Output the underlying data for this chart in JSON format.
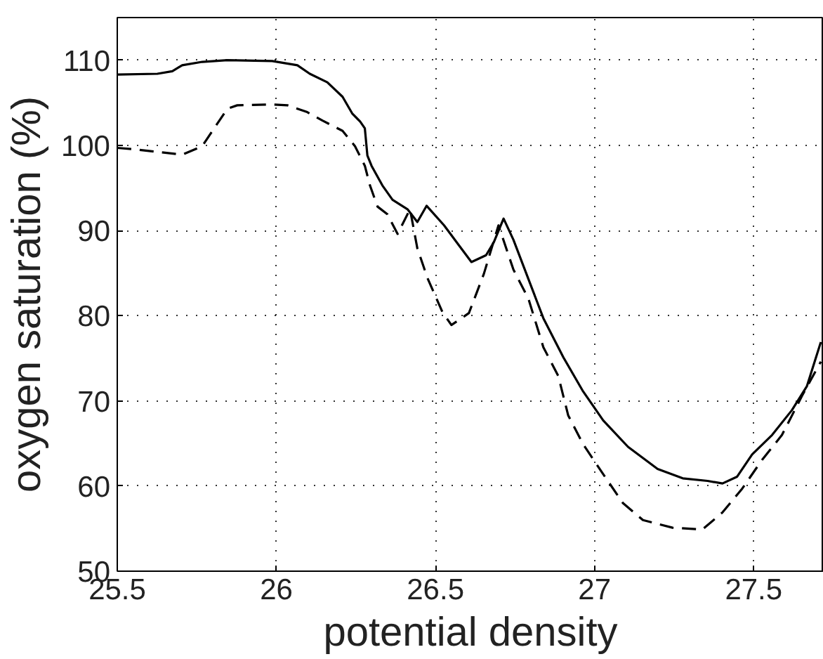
{
  "chart_data": {
    "type": "line",
    "xlabel": "potential density",
    "ylabel": "oxygen saturation (%)",
    "xlim": [
      25.5,
      27.72
    ],
    "ylim": [
      50,
      115
    ],
    "xticks": [
      25.5,
      26,
      26.5,
      27,
      27.5
    ],
    "yticks": [
      50,
      60,
      70,
      80,
      90,
      100,
      110
    ],
    "grid": true,
    "series": [
      {
        "color": "#000000",
        "line_style": "solid",
        "x": [
          25.5,
          25.626,
          25.673,
          25.704,
          25.767,
          25.846,
          25.987,
          26.066,
          26.105,
          26.16,
          26.208,
          26.239,
          26.263,
          26.278,
          26.286,
          26.299,
          26.333,
          26.365,
          26.412,
          26.443,
          26.472,
          26.527,
          26.573,
          26.613,
          26.659,
          26.683,
          26.714,
          26.745,
          26.792,
          26.839,
          26.902,
          26.964,
          27.027,
          27.105,
          27.198,
          27.277,
          27.355,
          27.402,
          27.448,
          27.495,
          27.558,
          27.62,
          27.667,
          27.711
        ],
        "values": [
          108.3,
          108.4,
          108.7,
          109.4,
          109.8,
          110,
          109.9,
          109.4,
          108.4,
          107.4,
          105.7,
          103.7,
          102.8,
          102,
          98.8,
          97.6,
          95.3,
          93.6,
          92.5,
          91,
          92.9,
          90.6,
          88.3,
          86.3,
          87.1,
          88.6,
          91.4,
          88.9,
          84.3,
          79.7,
          75.1,
          71.1,
          67.7,
          64.6,
          62,
          60.9,
          60.6,
          60.3,
          61.1,
          63.7,
          66,
          68.9,
          71.7,
          76.9
        ]
      },
      {
        "color": "#000000",
        "line_style": "dashed",
        "x": [
          25.5,
          25.563,
          25.704,
          25.767,
          25.799,
          25.846,
          25.877,
          25.987,
          26.035,
          26.097,
          26.145,
          26.208,
          26.247,
          26.278,
          26.294,
          26.318,
          26.349,
          26.381,
          26.42,
          26.443,
          26.475,
          26.522,
          26.55,
          26.605,
          26.652,
          26.698,
          26.745,
          26.792,
          26.839,
          26.886,
          26.917,
          26.964,
          27.027,
          27.089,
          27.152,
          27.245,
          27.339,
          27.402,
          27.464,
          27.527,
          27.589,
          27.652,
          27.711
        ],
        "values": [
          99.7,
          99.5,
          98.9,
          99.9,
          101.7,
          104.3,
          104.7,
          104.8,
          104.7,
          103.9,
          102.9,
          101.7,
          99.9,
          97.6,
          95.3,
          92.8,
          91.9,
          89.6,
          92.5,
          87.9,
          84.4,
          80.4,
          78.9,
          80.3,
          84.9,
          90.6,
          85.4,
          82,
          76.3,
          72.9,
          68.3,
          64.9,
          61.4,
          58,
          56,
          55.1,
          54.9,
          56.9,
          59.7,
          63.1,
          66,
          70.6,
          74.6
        ]
      }
    ]
  }
}
